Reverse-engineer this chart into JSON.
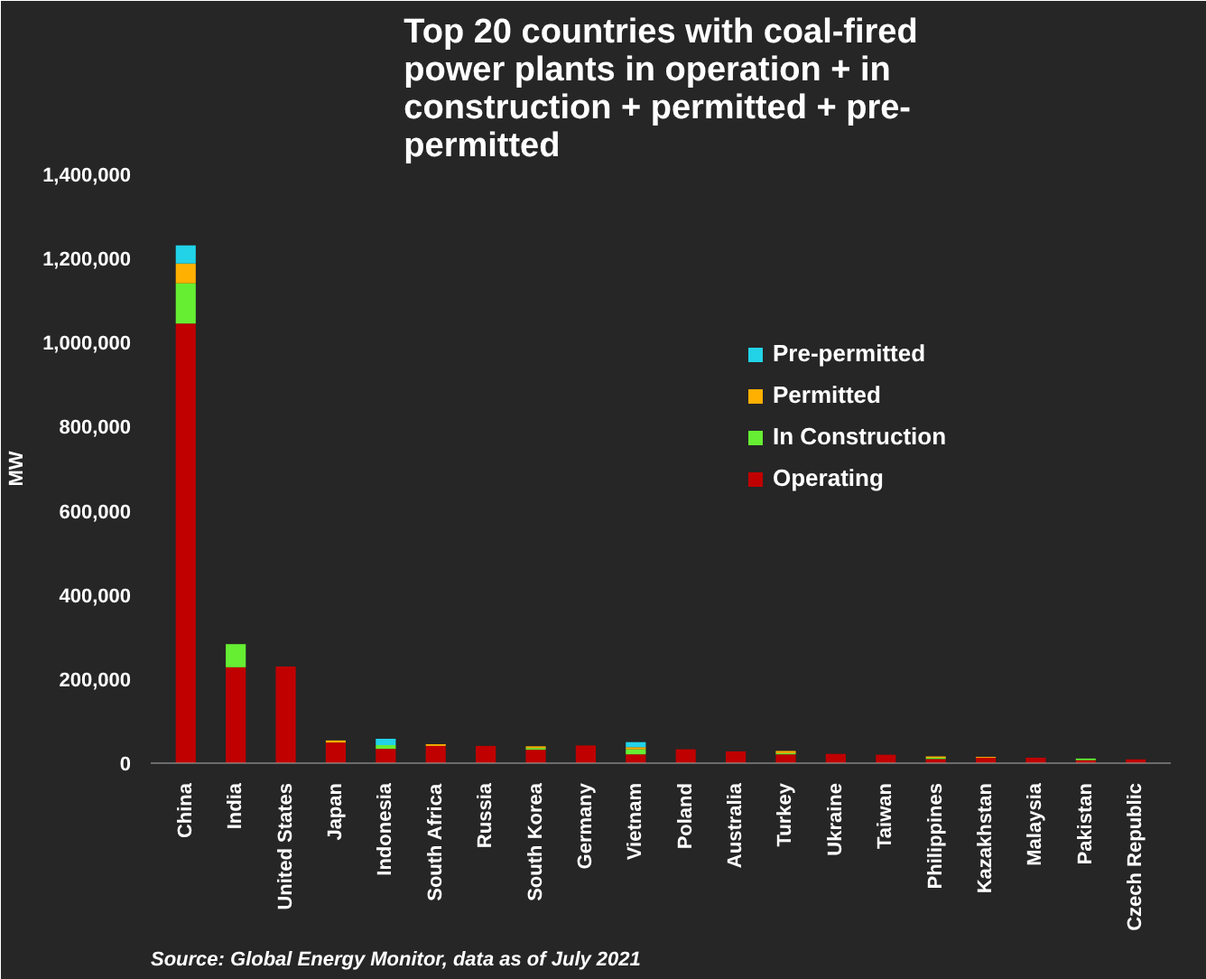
{
  "chart_data": {
    "type": "bar",
    "title": "Top 20 countries with coal-fired power plants in operation + in construction + permitted + pre-permitted",
    "ylabel": "MW",
    "categories": [
      "China",
      "India",
      "United States",
      "Japan",
      "Indonesia",
      "South Africa",
      "Russia",
      "South Korea",
      "Germany",
      "Vietnam",
      "Poland",
      "Australia",
      "Turkey",
      "Ukraine",
      "Taiwan",
      "Philippines",
      "Kazakhstan",
      "Malaysia",
      "Pakistan",
      "Czech Republic"
    ],
    "stacked": true,
    "series": [
      {
        "name": "Operating",
        "color": "#c00000",
        "values": [
          1045000,
          228000,
          230000,
          49000,
          34000,
          41000,
          41000,
          32000,
          42000,
          21000,
          33000,
          28000,
          21000,
          22000,
          20000,
          10000,
          13000,
          13000,
          7000,
          9000
        ]
      },
      {
        "name": "In Construction",
        "color": "#66ee33",
        "values": [
          96000,
          55000,
          0,
          0,
          9000,
          0,
          0,
          4000,
          0,
          12000,
          0,
          0,
          3000,
          0,
          0,
          3000,
          0,
          0,
          4000,
          0
        ]
      },
      {
        "name": "Permitted",
        "color": "#ffb000",
        "values": [
          47000,
          0,
          0,
          5000,
          0,
          4000,
          0,
          4000,
          0,
          5000,
          0,
          0,
          5000,
          0,
          0,
          3000,
          2000,
          0,
          0,
          0
        ]
      },
      {
        "name": "Pre-permitted",
        "color": "#22d3e8",
        "values": [
          43000,
          0,
          0,
          0,
          15000,
          0,
          0,
          0,
          0,
          12000,
          0,
          0,
          0,
          0,
          0,
          0,
          0,
          0,
          0,
          0
        ]
      }
    ],
    "ylim": [
      0,
      1400000
    ],
    "yticks": [
      0,
      {
        "value": 200000,
        "label": "200,000"
      },
      {
        "value": 400000,
        "label": "400,000"
      },
      {
        "value": 600000,
        "label": "600,000"
      },
      {
        "value": 800000,
        "label": "800,000"
      },
      {
        "value": 1000000,
        "label": "1,000,000"
      },
      {
        "value": 1200000,
        "label": "1,200,000"
      },
      {
        "value": 1400000,
        "label": "1,400,000"
      }
    ],
    "legend": "right",
    "annotations": [
      "Source: Global Energy Monitor, data as of July 2021"
    ]
  }
}
